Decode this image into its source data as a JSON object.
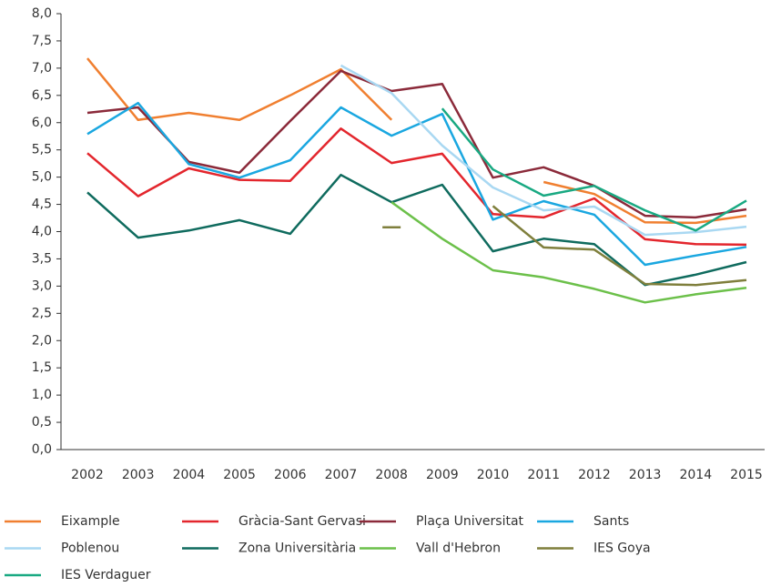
{
  "chart_data": {
    "type": "line",
    "categories": [
      "2002",
      "2003",
      "2004",
      "2005",
      "2006",
      "2007",
      "2008",
      "2009",
      "2010",
      "2011",
      "2012",
      "2013",
      "2014",
      "2015"
    ],
    "ylim": [
      0,
      8
    ],
    "yticks": [
      {
        "value": 0,
        "label": "0,0"
      },
      {
        "value": 0.5,
        "label": "0,5"
      },
      {
        "value": 1,
        "label": "1,0"
      },
      {
        "value": 1.5,
        "label": "1,5"
      },
      {
        "value": 2,
        "label": "2,0"
      },
      {
        "value": 2.5,
        "label": "2,5"
      },
      {
        "value": 3,
        "label": "3,0"
      },
      {
        "value": 3.5,
        "label": "3,5"
      },
      {
        "value": 4,
        "label": "4,0"
      },
      {
        "value": 4.5,
        "label": "4,5"
      },
      {
        "value": 5,
        "label": "5,0"
      },
      {
        "value": 5.5,
        "label": "5,5"
      },
      {
        "value": 6,
        "label": "6,0"
      },
      {
        "value": 6.5,
        "label": "6,5"
      },
      {
        "value": 7,
        "label": "7,0"
      },
      {
        "value": 7.5,
        "label": "7,5"
      },
      {
        "value": 8,
        "label": "8,0"
      }
    ],
    "grid": false,
    "legend": "bottom",
    "series": [
      {
        "name": "Eixample",
        "color": "#f07f30",
        "values": [
          7.18,
          6.05,
          6.18,
          6.05,
          6.5,
          6.98,
          6.05,
          null,
          null,
          4.91,
          4.69,
          4.17,
          4.16,
          4.29
        ]
      },
      {
        "name": "Gràcia-Sant Gervasi",
        "color": "#e3262d",
        "values": [
          5.44,
          4.65,
          5.16,
          4.95,
          4.93,
          5.89,
          5.26,
          5.43,
          4.32,
          4.26,
          4.61,
          3.86,
          3.77,
          3.76
        ]
      },
      {
        "name": "Plaça Universitat",
        "color": "#8b2a3a",
        "values": [
          6.18,
          6.28,
          5.28,
          5.08,
          6.03,
          6.95,
          6.58,
          6.71,
          4.99,
          5.18,
          4.84,
          4.29,
          4.26,
          4.41
        ]
      },
      {
        "name": "Sants",
        "color": "#1aa7e0",
        "values": [
          5.79,
          6.36,
          5.24,
          4.99,
          5.31,
          6.28,
          5.76,
          6.16,
          4.22,
          4.56,
          4.31,
          3.39,
          3.56,
          3.72
        ]
      },
      {
        "name": "Poblenou",
        "color": "#a9d8f2",
        "values": [
          null,
          null,
          null,
          null,
          null,
          7.05,
          6.54,
          5.58,
          4.81,
          4.39,
          4.46,
          3.94,
          3.99,
          4.09
        ]
      },
      {
        "name": "Zona Universitària",
        "color": "#0f6b5e",
        "values": [
          4.72,
          3.89,
          4.02,
          4.21,
          3.96,
          5.04,
          4.54,
          4.86,
          3.64,
          3.87,
          3.77,
          3.02,
          3.21,
          3.44
        ]
      },
      {
        "name": "Vall d'Hebron",
        "color": "#6cc04a",
        "values": [
          null,
          null,
          null,
          null,
          null,
          null,
          4.54,
          3.87,
          3.29,
          3.16,
          2.95,
          2.7,
          2.85,
          2.97
        ]
      },
      {
        "name": "IES Goya",
        "color": "#7f7f3c",
        "values": [
          null,
          null,
          null,
          null,
          null,
          null,
          4.08,
          null,
          4.47,
          3.71,
          3.67,
          3.04,
          3.02,
          3.11
        ]
      },
      {
        "name": "IES Verdaguer",
        "color": "#19a982",
        "values": [
          null,
          null,
          null,
          null,
          null,
          null,
          null,
          6.26,
          5.14,
          4.66,
          4.84,
          4.39,
          4.02,
          4.57
        ]
      }
    ]
  }
}
